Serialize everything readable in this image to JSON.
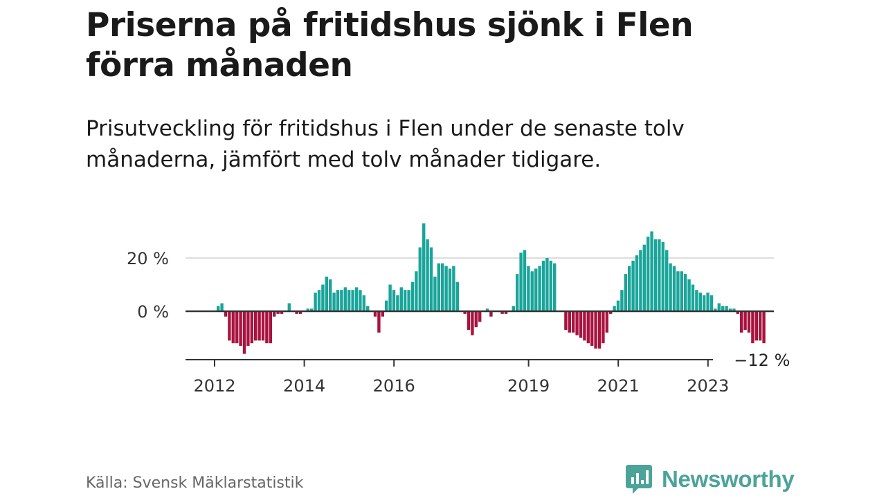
{
  "title": "Priserna på fritidshus sjönk i Flen förra månaden",
  "subtitle": "Prisutveckling för fritidshus i Flen under de senaste tolv månaderna, jämfört med tolv månader tidigare.",
  "source": "Källa: Svensk Mäklarstatistik",
  "brand": {
    "name": "Newsworthy",
    "icon": "newsworthy-logo-icon",
    "color": "#4ba39a"
  },
  "colors": {
    "positive": "#1aa59a",
    "negative": "#a8133f",
    "grid": "#dddddd",
    "baseline": "#333333"
  },
  "chart_data": {
    "type": "bar",
    "unit": "%",
    "x_unit": "month",
    "y_ticks": [
      0,
      20
    ],
    "y_tick_labels": [
      "0 %",
      "20 %"
    ],
    "ylim": [
      -16,
      33
    ],
    "grid": true,
    "x_ticks": [
      "2012",
      "2014",
      "2016",
      "2019",
      "2021",
      "2023"
    ],
    "end_label": "−12 %",
    "series": [
      {
        "start": "2012-01",
        "values": [
          2,
          3,
          -2,
          -11,
          -12,
          -12,
          -13,
          -16,
          -13,
          -12,
          -11,
          -11,
          -11,
          -12,
          -12,
          -2,
          -1,
          -1,
          0,
          3,
          0,
          -1,
          -1,
          0,
          1,
          1,
          7,
          8,
          10,
          13,
          12,
          7,
          8,
          8,
          9,
          8,
          8,
          9,
          8,
          6,
          2,
          0,
          -2,
          -8,
          -2,
          4,
          10,
          8,
          6,
          9,
          8,
          8,
          11,
          15,
          24,
          33,
          27,
          24,
          13,
          18,
          18,
          17,
          16,
          17,
          11,
          0,
          -1,
          -7,
          -9,
          -6,
          -4,
          0,
          1,
          -2,
          0,
          0,
          -1,
          -1,
          0,
          2,
          14,
          22,
          23,
          17,
          15,
          16,
          17,
          19,
          20,
          19,
          18,
          0,
          0,
          -7,
          -8,
          -8,
          -9,
          -10,
          -11,
          -12,
          -13,
          -14,
          -14,
          -12,
          -8,
          -1,
          2,
          4,
          8,
          14,
          17,
          19,
          21,
          23,
          25,
          28,
          30,
          27,
          27,
          26,
          23,
          18,
          17,
          15,
          15,
          14,
          12,
          10,
          8,
          7,
          6,
          7,
          6,
          1,
          3,
          2,
          2,
          1,
          1,
          -1,
          -8,
          -7,
          -8,
          -12,
          -11,
          -11,
          -12
        ]
      }
    ]
  }
}
